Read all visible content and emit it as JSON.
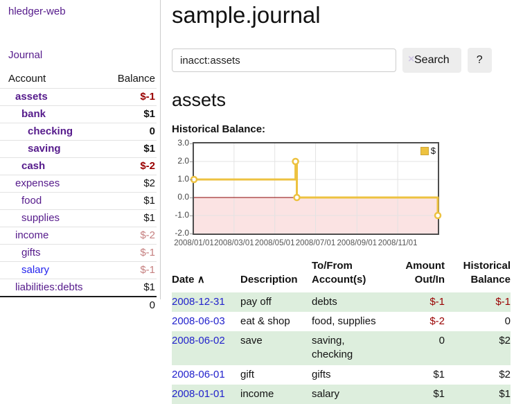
{
  "app": {
    "brand": "hledger-web"
  },
  "sidebar": {
    "nav": {
      "journal": "Journal"
    },
    "table": {
      "headers": {
        "account": "Account",
        "balance": "Balance"
      },
      "accounts": [
        {
          "name": "assets",
          "balance": "$-1"
        },
        {
          "name": "bank",
          "balance": "$1"
        },
        {
          "name": "checking",
          "balance": "0"
        },
        {
          "name": "saving",
          "balance": "$1"
        },
        {
          "name": "cash",
          "balance": "$-2"
        },
        {
          "name": "expenses",
          "balance": "$2"
        },
        {
          "name": "food",
          "balance": "$1"
        },
        {
          "name": "supplies",
          "balance": "$1"
        },
        {
          "name": "income",
          "balance": "$-2"
        },
        {
          "name": "gifts",
          "balance": "$-1"
        },
        {
          "name": "salary",
          "balance": "$-1"
        },
        {
          "name": "liabilities:debts",
          "balance": "$1"
        }
      ],
      "total": "0"
    }
  },
  "header": {
    "title": "sample.journal"
  },
  "search": {
    "value": "inacct:assets",
    "clear_icon": "×",
    "button": "Search",
    "help_button": "?"
  },
  "account_page": {
    "title": "assets",
    "chart_label": "Historical Balance:"
  },
  "chart_data": {
    "type": "line",
    "step": true,
    "title": "Historical Balance:",
    "series_name": "$",
    "series_color": "#edc240",
    "points": [
      {
        "date": "2008-01-01",
        "day": 0,
        "value": 1
      },
      {
        "date": "2008-06-01",
        "day": 152,
        "value": 2
      },
      {
        "date": "2008-06-03",
        "day": 154,
        "value": 0
      },
      {
        "date": "2008-12-31",
        "day": 365,
        "value": -1
      }
    ],
    "xlim_days": [
      0,
      365
    ],
    "ylim": [
      -2,
      3
    ],
    "ytick_values": [
      3,
      2,
      1,
      0,
      -1,
      -2
    ],
    "yticks": [
      "3.0",
      "2.0",
      "1.0",
      "0.0",
      "-1.0",
      "-2.0"
    ],
    "xticks": [
      {
        "day": 0,
        "label": "2008/01/01"
      },
      {
        "day": 60,
        "label": "2008/03/01"
      },
      {
        "day": 121,
        "label": "2008/05/01"
      },
      {
        "day": 182,
        "label": "2008/07/01"
      },
      {
        "day": 244,
        "label": "2008/09/01"
      },
      {
        "day": 305,
        "label": "2008/11/01"
      }
    ],
    "grid": true,
    "legend_position": "top-right",
    "negative_region_color": "#fbe3e3",
    "zero_line_color": "#8b0000",
    "grid_color": "#e3e3e3"
  },
  "register": {
    "sort_icon": "∧",
    "columns": {
      "date": "Date",
      "description": "Description",
      "accounts_l1": "To/From",
      "accounts_l2": "Account(s)",
      "amount_l1": "Amount",
      "amount_l2": "Out/In",
      "balance_l1": "Historical",
      "balance_l2": "Balance"
    },
    "rows": [
      {
        "date": "2008-12-31",
        "description": "pay off",
        "accounts": "debts",
        "amount": "$-1",
        "balance": "$-1"
      },
      {
        "date": "2008-06-03",
        "description": "eat & shop",
        "accounts": "food, supplies",
        "amount": "$-2",
        "balance": "0"
      },
      {
        "date": "2008-06-02",
        "description": "save",
        "accounts": "saving, checking",
        "amount": "0",
        "balance": "$2"
      },
      {
        "date": "2008-06-01",
        "description": "gift",
        "accounts": "gifts",
        "amount": "$1",
        "balance": "$2"
      },
      {
        "date": "2008-01-01",
        "description": "income",
        "accounts": "salary",
        "amount": "$1",
        "balance": "$1"
      }
    ]
  }
}
